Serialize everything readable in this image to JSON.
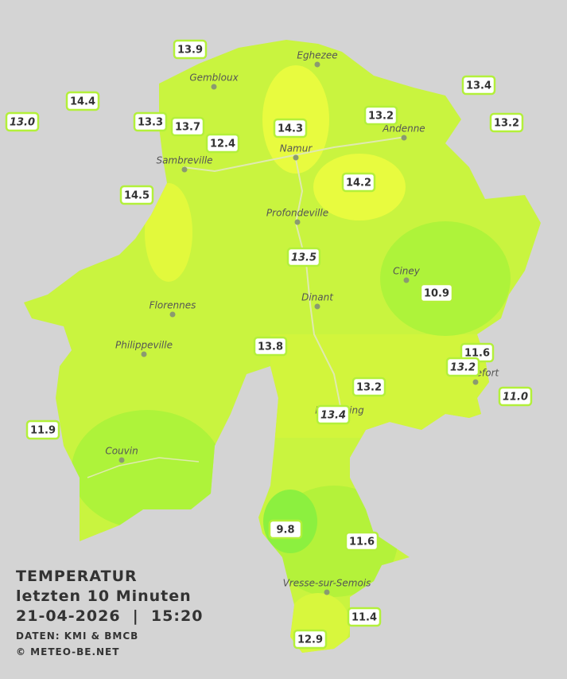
{
  "legend": {
    "title": "TEMPERATUR",
    "period": "letzten 10 Minuten",
    "datetime": "21-04-2026  |  15:20",
    "source": "DATEN: KMI & BMCB",
    "copyright": "© METEO-BE.NET"
  },
  "cities": [
    "Eghezee",
    "Gembloux",
    "Andenne",
    "Namur",
    "Sambreville",
    "Profondeville",
    "Ciney",
    "Dinant",
    "Florennes",
    "Philippeville",
    "Rochefort",
    "Beauraing",
    "Couvin",
    "Vresse-sur-Semois"
  ],
  "stations": [
    {
      "value": "13.9",
      "italic": false
    },
    {
      "value": "14.4",
      "italic": false
    },
    {
      "value": "13.0",
      "italic": true
    },
    {
      "value": "13.3",
      "italic": false
    },
    {
      "value": "13.7",
      "italic": false
    },
    {
      "value": "12.4",
      "italic": false
    },
    {
      "value": "14.5",
      "italic": false
    },
    {
      "value": "14.3",
      "italic": false
    },
    {
      "value": "13.2",
      "italic": false
    },
    {
      "value": "13.4",
      "italic": false
    },
    {
      "value": "13.2",
      "italic": false
    },
    {
      "value": "14.2",
      "italic": false
    },
    {
      "value": "13.5",
      "italic": true
    },
    {
      "value": "10.9",
      "italic": false
    },
    {
      "value": "13.8",
      "italic": false
    },
    {
      "value": "11.6",
      "italic": false
    },
    {
      "value": "13.2",
      "italic": true
    },
    {
      "value": "11.0",
      "italic": true
    },
    {
      "value": "13.2",
      "italic": false
    },
    {
      "value": "13.4",
      "italic": true
    },
    {
      "value": "11.9",
      "italic": false
    },
    {
      "value": "9.8",
      "italic": false
    },
    {
      "value": "11.6",
      "italic": false
    },
    {
      "value": "11.4",
      "italic": false
    },
    {
      "value": "12.9",
      "italic": false
    }
  ]
}
